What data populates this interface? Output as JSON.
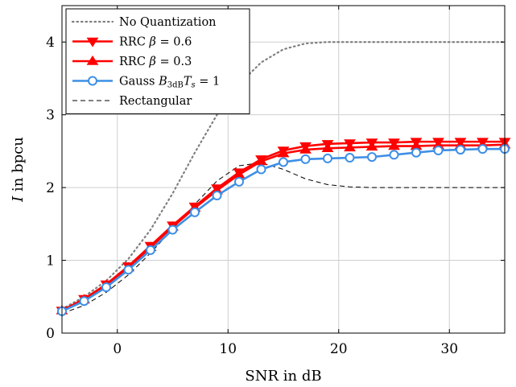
{
  "chart_data": {
    "type": "line",
    "title": "",
    "xlabel": "SNR in dB",
    "ylabel_italic": "I",
    "ylabel_rest": " in bpcu",
    "xlim": [
      -5,
      35
    ],
    "ylim": [
      0,
      4.5
    ],
    "xticks": [
      0,
      10,
      20,
      30
    ],
    "yticks": [
      0,
      1,
      2,
      3,
      4
    ],
    "grid": true,
    "legend_position": "top-left",
    "series": [
      {
        "name": "No Quantization",
        "legend_parts": [
          {
            "t": "No Quantization",
            "s": "n"
          }
        ],
        "color": "#7f7f7f",
        "style": "dotted",
        "marker": "none",
        "x": [
          -5,
          -3,
          -1,
          1,
          3,
          5,
          7,
          9,
          11,
          13,
          15,
          17,
          19,
          21,
          23,
          25,
          27,
          29,
          31,
          33,
          35
        ],
        "y": [
          0.33,
          0.5,
          0.72,
          1.02,
          1.42,
          1.92,
          2.48,
          3.0,
          3.42,
          3.72,
          3.9,
          3.98,
          4.0,
          4.0,
          4.0,
          4.0,
          4.0,
          4.0,
          4.0,
          4.0,
          4.0
        ]
      },
      {
        "name": "RRC β = 0.6",
        "legend_parts": [
          {
            "t": "RRC ",
            "s": "n"
          },
          {
            "t": "β",
            "s": "i"
          },
          {
            "t": " = 0.6",
            "s": "n"
          }
        ],
        "color": "#ff0000",
        "style": "solid",
        "marker": "triangle-down",
        "x": [
          -5,
          -3,
          -1,
          1,
          3,
          5,
          7,
          9,
          11,
          13,
          15,
          17,
          19,
          21,
          23,
          25,
          27,
          29,
          31,
          33,
          35
        ],
        "y": [
          0.31,
          0.47,
          0.67,
          0.92,
          1.2,
          1.48,
          1.74,
          1.99,
          2.21,
          2.39,
          2.51,
          2.57,
          2.6,
          2.61,
          2.62,
          2.62,
          2.63,
          2.63,
          2.63,
          2.63,
          2.63
        ]
      },
      {
        "name": "RRC β = 0.3",
        "legend_parts": [
          {
            "t": "RRC ",
            "s": "n"
          },
          {
            "t": "β",
            "s": "i"
          },
          {
            "t": " = 0.3",
            "s": "n"
          }
        ],
        "color": "#ff0000",
        "style": "solid",
        "marker": "triangle-up",
        "x": [
          -5,
          -3,
          -1,
          1,
          3,
          5,
          7,
          9,
          11,
          13,
          15,
          17,
          19,
          21,
          23,
          25,
          27,
          29,
          31,
          33,
          35
        ],
        "y": [
          0.31,
          0.46,
          0.66,
          0.9,
          1.18,
          1.46,
          1.72,
          1.96,
          2.18,
          2.36,
          2.47,
          2.52,
          2.54,
          2.55,
          2.56,
          2.57,
          2.57,
          2.58,
          2.58,
          2.58,
          2.59
        ]
      },
      {
        "name": "Gauss B3dBTs = 1",
        "legend_parts": [
          {
            "t": "Gauss ",
            "s": "n"
          },
          {
            "t": "B",
            "s": "i"
          },
          {
            "t": "3dB",
            "s": "sub"
          },
          {
            "t": "T",
            "s": "i"
          },
          {
            "t": "s",
            "s": "isub"
          },
          {
            "t": " = 1",
            "s": "n"
          }
        ],
        "color": "#3d8fe6",
        "style": "solid",
        "marker": "circle",
        "x": [
          -5,
          -3,
          -1,
          1,
          3,
          5,
          7,
          9,
          11,
          13,
          15,
          17,
          19,
          21,
          23,
          25,
          27,
          29,
          31,
          33,
          35
        ],
        "y": [
          0.3,
          0.44,
          0.63,
          0.87,
          1.14,
          1.42,
          1.66,
          1.89,
          2.08,
          2.25,
          2.35,
          2.39,
          2.4,
          2.41,
          2.42,
          2.45,
          2.48,
          2.51,
          2.52,
          2.53,
          2.53
        ]
      },
      {
        "name": "Rectangular",
        "legend_parts": [
          {
            "t": "Rectangular",
            "s": "n"
          }
        ],
        "color": "#000000",
        "style": "dashed",
        "marker": "none",
        "x": [
          -5,
          -3,
          -1,
          1,
          3,
          5,
          7,
          9,
          11,
          13,
          15,
          17,
          19,
          21,
          23,
          25,
          27,
          29,
          31,
          33,
          35
        ],
        "y": [
          0.27,
          0.38,
          0.56,
          0.8,
          1.1,
          1.43,
          1.77,
          2.09,
          2.3,
          2.34,
          2.25,
          2.12,
          2.04,
          2.01,
          2.0,
          2.0,
          2.0,
          2.0,
          2.0,
          2.0,
          2.0
        ]
      }
    ]
  }
}
